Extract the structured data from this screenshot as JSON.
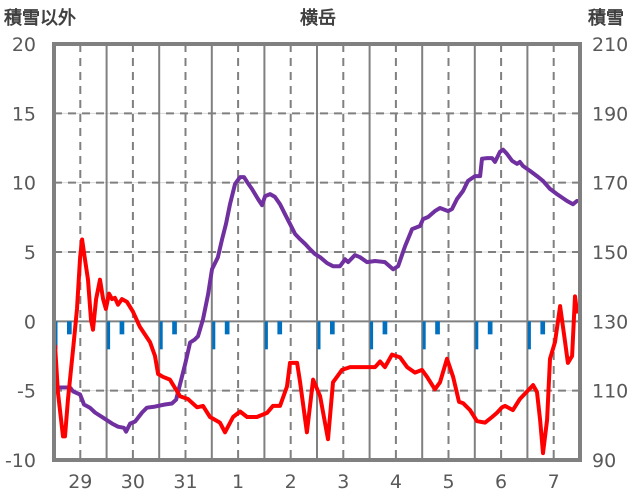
{
  "chart_data": {
    "type": "line",
    "title": "横岳",
    "ylabel_left": "積雪以外",
    "ylabel_right": "積雪",
    "xlim": [
      0,
      240
    ],
    "x_unit": "hours from start of day 29",
    "ylim_left": [
      -10,
      20
    ],
    "ylim_right": [
      90,
      210
    ],
    "yticks_left": [
      "20",
      "15",
      "10",
      "5",
      "0",
      "-5",
      "-10"
    ],
    "yticks_right": [
      "210",
      "190",
      "170",
      "150",
      "130",
      "110",
      "90"
    ],
    "xtick_labels": [
      "29",
      "30",
      "31",
      "1",
      "2",
      "3",
      "4",
      "5",
      "6",
      "7"
    ],
    "grid": true,
    "colors": {
      "temperature": "#ff0000",
      "snow_depth": "#7030a0",
      "markers": "#0070c0",
      "frame": "#808080"
    },
    "series": [
      {
        "name": "snow_depth",
        "axis": "right",
        "x": [
          0,
          1.8,
          7.3,
          8.7,
          11.9,
          13.7,
          16.4,
          18.7,
          22.4,
          26.5,
          29.2,
          31.9,
          32.9,
          34.7,
          37,
          40.2,
          42.4,
          46.1,
          50.6,
          53.8,
          55.7,
          57.5,
          59.8,
          62.1,
          64.3,
          65.7,
          68,
          70.3,
          72.1,
          74.8,
          76.7,
          78.5,
          80.3,
          82.6,
          84.9,
          86.7,
          88.1,
          90.3,
          93.1,
          94.9,
          96.3,
          98.6,
          100.8,
          103.1,
          105.4,
          107.7,
          110,
          112.3,
          114.6,
          116.8,
          119.1,
          121.4,
          124.6,
          127.3,
          130.5,
          132.8,
          134.2,
          137.3,
          139.6,
          142.8,
          146.5,
          151,
          154.7,
          157,
          160.2,
          163.4,
          167,
          168.4,
          170.7,
          173.8,
          176.1,
          179.8,
          181.6,
          183.9,
          186.6,
          188.9,
          192.1,
          194.4,
          195.3,
          197.6,
          199.9,
          201.2,
          203.5,
          204.9,
          206.7,
          209,
          211.3,
          212.6,
          214,
          217.2,
          220.4,
          223.1,
          226.3,
          229.5,
          234.1,
          236.8,
          238.6
        ],
        "y": [
          111.8,
          110.9,
          110.9,
          109.8,
          108.9,
          106,
          105.1,
          103.7,
          102.2,
          100.5,
          99.6,
          99.3,
          98.2,
          100.5,
          101.1,
          103.7,
          105.1,
          105.4,
          106,
          106.3,
          107.4,
          111.8,
          117.6,
          123.9,
          124.8,
          125.7,
          130.6,
          137.8,
          145,
          148.5,
          153.7,
          158.1,
          163.8,
          169.6,
          171.6,
          171.6,
          170.2,
          168.2,
          165.3,
          163.5,
          166.1,
          166.7,
          165.9,
          163.8,
          160.9,
          158.1,
          155.2,
          153.7,
          152.3,
          150.8,
          149.4,
          148.5,
          146.8,
          145.9,
          145.9,
          147.9,
          147.1,
          149.1,
          148.5,
          147.1,
          147.4,
          147.1,
          145,
          145.9,
          151.7,
          156.6,
          157.5,
          159.5,
          160.1,
          161.8,
          162.7,
          161.8,
          162.4,
          165.3,
          167.6,
          170.5,
          171.9,
          171.9,
          176.9,
          177.1,
          177.1,
          176,
          178.9,
          179.5,
          178.3,
          176.3,
          175.4,
          176,
          174.8,
          173.4,
          171.9,
          170.5,
          168.2,
          166.7,
          164.7,
          163.8,
          164.7
        ]
      },
      {
        "name": "temperature",
        "axis": "left",
        "x": [
          0.5,
          1.8,
          4.1,
          5,
          6.4,
          8.7,
          10.5,
          11.9,
          12.8,
          14.1,
          15.5,
          16.9,
          17.8,
          19.2,
          21,
          22.4,
          23.7,
          25.1,
          26.5,
          27.8,
          29.2,
          31,
          33.3,
          36,
          39.2,
          43.8,
          46.1,
          47.5,
          49.7,
          52.9,
          57.5,
          61.1,
          65.3,
          68,
          71.2,
          75.7,
          78,
          81.7,
          84.9,
          88.1,
          92.6,
          97.2,
          99.9,
          103.1,
          106.3,
          107.7,
          110.9,
          112.3,
          115.4,
          118.2,
          121.4,
          125,
          127.3,
          131.4,
          135.1,
          139.6,
          144.2,
          146.5,
          148.8,
          151,
          154.2,
          157.9,
          161.1,
          164.7,
          167.9,
          170.2,
          173.8,
          176.1,
          179.3,
          182.1,
          184.8,
          186.6,
          189.8,
          193,
          196.7,
          199.9,
          202.1,
          204.4,
          205.8,
          209.4,
          212.6,
          218.6,
          220.4,
          221.8,
          223.1,
          225,
          226.3,
          228.6,
          230.9,
          233.2,
          234.5,
          236.4,
          237.7,
          238.6
        ],
        "y": [
          -1.8,
          -5.1,
          -8.3,
          -8.3,
          -5.6,
          -2,
          0.9,
          4.6,
          5.9,
          4.5,
          3,
          0.1,
          -0.6,
          1.6,
          3,
          1.6,
          0.9,
          2,
          1.6,
          1.7,
          1.2,
          1.6,
          1.4,
          0.7,
          -0.4,
          -1.5,
          -2.5,
          -3.8,
          -4,
          -4.2,
          -5.4,
          -5.6,
          -6.2,
          -6.1,
          -6.9,
          -7.3,
          -8,
          -6.9,
          -6.5,
          -6.9,
          -6.9,
          -6.6,
          -6.1,
          -6.1,
          -4.7,
          -3,
          -3,
          -4.4,
          -8,
          -4.2,
          -5.4,
          -8.5,
          -4.4,
          -3.5,
          -3.3,
          -3.3,
          -3.3,
          -3.3,
          -2.9,
          -3.3,
          -2.4,
          -2.6,
          -3.3,
          -3.7,
          -3.5,
          -4,
          -4.9,
          -4.4,
          -2.7,
          -4,
          -5.8,
          -5.9,
          -6.4,
          -7.2,
          -7.3,
          -6.9,
          -6.6,
          -6.2,
          -6.1,
          -6.4,
          -5.6,
          -4.6,
          -5.1,
          -7.1,
          -9.5,
          -7.1,
          -2.7,
          -1.5,
          1.1,
          -1.5,
          -3,
          -2.5,
          1.8,
          0.7
        ]
      }
    ],
    "markers": {
      "long_hours": [
        0,
        24,
        48,
        72,
        96,
        120,
        144,
        168,
        192,
        216
      ],
      "short_offset_hours": [
        6.5,
        7.5
      ]
    }
  }
}
